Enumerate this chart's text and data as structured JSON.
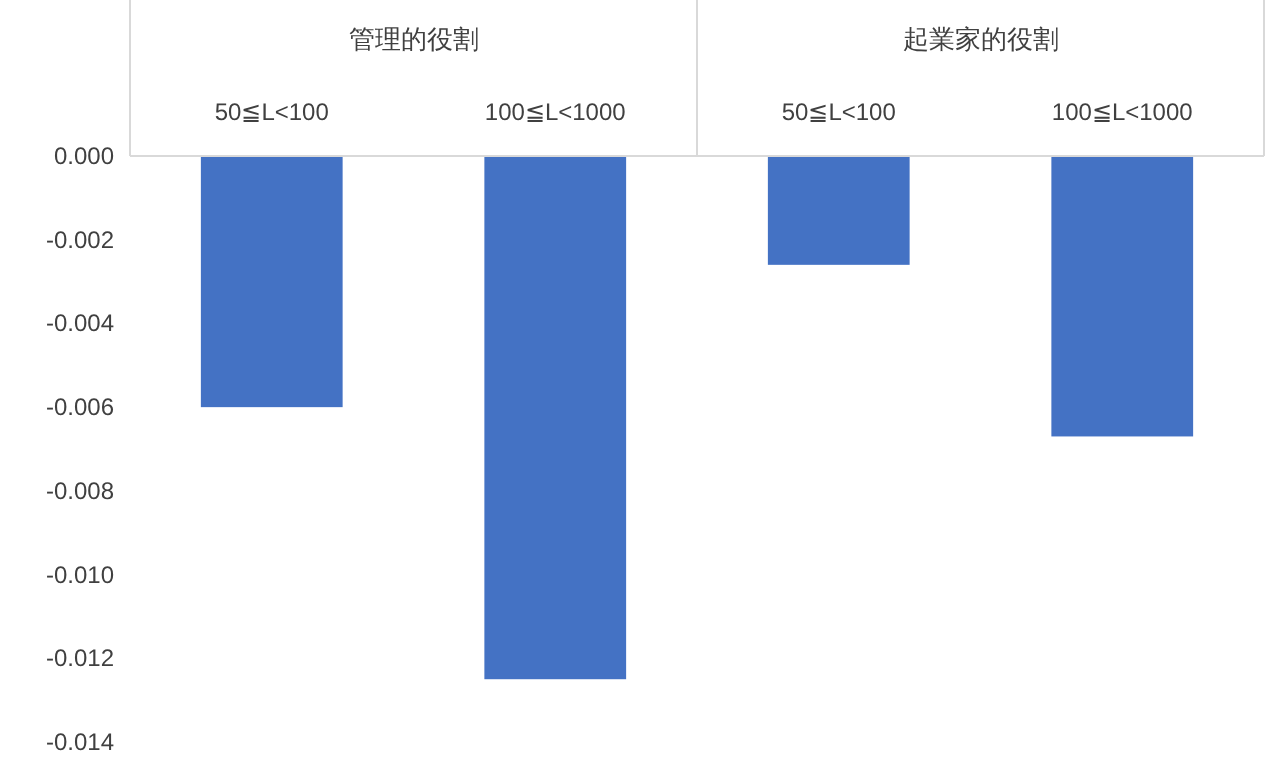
{
  "chart_data": {
    "type": "bar",
    "categories": [
      "50≦L<100",
      "100≦L<1000",
      "50≦L<100",
      "100≦L<1000"
    ],
    "values": [
      -0.006,
      -0.0125,
      -0.0026,
      -0.0067
    ],
    "color": "#4472c4",
    "ylim": [
      -0.014,
      0
    ],
    "yticks": [
      {
        "value": 0,
        "label": "0.000"
      },
      {
        "value": -0.002,
        "label": "-0.002"
      },
      {
        "value": -0.004,
        "label": "-0.004"
      },
      {
        "value": -0.006,
        "label": "-0.006"
      },
      {
        "value": -0.008,
        "label": "-0.008"
      },
      {
        "value": -0.01,
        "label": "-0.010"
      },
      {
        "value": -0.012,
        "label": "-0.012"
      },
      {
        "value": -0.014,
        "label": "-0.014"
      }
    ],
    "annotations": [
      "管理的役割",
      "起業家的役割"
    ],
    "grid": false
  }
}
